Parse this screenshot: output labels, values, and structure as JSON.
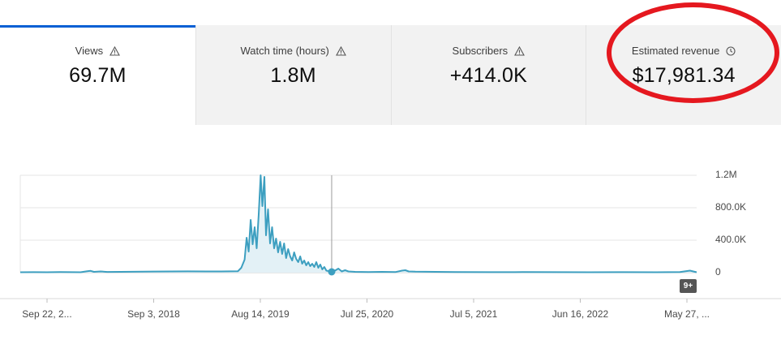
{
  "metrics": [
    {
      "label": "Views",
      "value": "69.7M",
      "icon": "warning-icon"
    },
    {
      "label": "Watch time (hours)",
      "value": "1.8M",
      "icon": "warning-icon"
    },
    {
      "label": "Subscribers",
      "value": "+414.0K",
      "icon": "warning-icon"
    },
    {
      "label": "Estimated revenue",
      "value": "$17,981.34",
      "icon": "clock-icon"
    }
  ],
  "selected_metric": "Views",
  "annotation_color": "#e5181f",
  "chart_data": {
    "type": "line",
    "series": [
      {
        "color": "#3d9fc0",
        "points": [
          [
            0,
            5
          ],
          [
            4,
            6
          ],
          [
            8,
            5
          ],
          [
            12,
            7
          ],
          [
            15,
            6
          ],
          [
            18,
            5
          ],
          [
            20,
            18
          ],
          [
            21,
            22
          ],
          [
            22,
            10
          ],
          [
            24,
            15
          ],
          [
            26,
            9
          ],
          [
            30,
            10
          ],
          [
            40,
            14
          ],
          [
            50,
            16
          ],
          [
            60,
            15
          ],
          [
            65,
            18
          ],
          [
            66,
            60
          ],
          [
            67,
            160
          ],
          [
            67.6,
            430
          ],
          [
            68.2,
            260
          ],
          [
            68.8,
            650
          ],
          [
            69.4,
            350
          ],
          [
            70,
            560
          ],
          [
            70.6,
            300
          ],
          [
            71.2,
            720
          ],
          [
            71.8,
            1200
          ],
          [
            72.3,
            820
          ],
          [
            72.9,
            1180
          ],
          [
            73.4,
            460
          ],
          [
            74,
            780
          ],
          [
            74.6,
            360
          ],
          [
            75.2,
            560
          ],
          [
            75.8,
            300
          ],
          [
            76.4,
            420
          ],
          [
            77,
            250
          ],
          [
            77.6,
            380
          ],
          [
            78.2,
            230
          ],
          [
            78.8,
            360
          ],
          [
            79.4,
            180
          ],
          [
            80,
            290
          ],
          [
            80.6,
            200
          ],
          [
            81.2,
            150
          ],
          [
            81.8,
            250
          ],
          [
            82.4,
            170
          ],
          [
            83,
            130
          ],
          [
            83.6,
            200
          ],
          [
            84.2,
            110
          ],
          [
            84.8,
            150
          ],
          [
            85.4,
            90
          ],
          [
            86,
            130
          ],
          [
            86.6,
            80
          ],
          [
            87.2,
            110
          ],
          [
            87.8,
            70
          ],
          [
            88.4,
            130
          ],
          [
            89,
            60
          ],
          [
            89.6,
            100
          ],
          [
            90.2,
            40
          ],
          [
            90.8,
            70
          ],
          [
            91.4,
            25
          ],
          [
            92,
            20
          ],
          [
            93,
            40
          ],
          [
            94,
            25
          ],
          [
            95,
            50
          ],
          [
            96,
            15
          ],
          [
            97,
            30
          ],
          [
            98,
            15
          ],
          [
            100,
            10
          ],
          [
            104,
            8
          ],
          [
            108,
            10
          ],
          [
            112,
            7
          ],
          [
            114,
            25
          ],
          [
            115,
            30
          ],
          [
            116,
            15
          ],
          [
            118,
            12
          ],
          [
            124,
            10
          ],
          [
            130,
            8
          ],
          [
            140,
            6
          ],
          [
            150,
            7
          ],
          [
            160,
            6
          ],
          [
            170,
            5
          ],
          [
            180,
            6
          ],
          [
            190,
            5
          ],
          [
            197,
            7
          ],
          [
            200,
            25
          ],
          [
            202,
            5
          ]
        ]
      }
    ],
    "x_range": [
      0,
      202
    ],
    "hover_marker_x": 93,
    "ylim": [
      0,
      1200000
    ],
    "yticks": [
      {
        "value": 1200000,
        "label": "1.2M"
      },
      {
        "value": 800000,
        "label": "800.0K"
      },
      {
        "value": 400000,
        "label": "400.0K"
      },
      {
        "value": 0,
        "label": "0"
      }
    ],
    "xticks": [
      "Sep 22, 2...",
      "Sep 3, 2018",
      "Aug 14, 2019",
      "Jul 25, 2020",
      "Jul 5, 2021",
      "Jun 16, 2022",
      "May 27, ..."
    ],
    "grid": true,
    "badge": "9+"
  }
}
